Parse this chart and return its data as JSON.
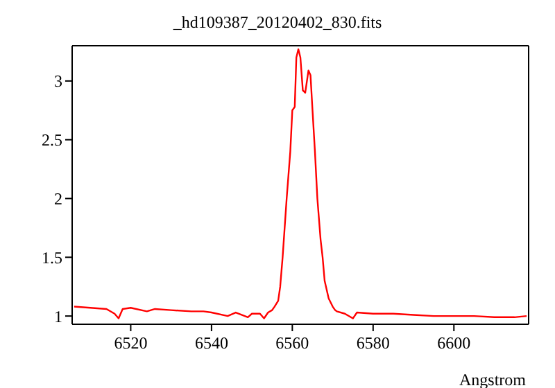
{
  "chart_data": {
    "type": "line",
    "title": "_hd109387_20120402_830.fits",
    "xlabel": "Angstrom",
    "xlim": [
      6505.5,
      6618.5
    ],
    "xticks": [
      6520,
      6540,
      6560,
      6580,
      6600
    ],
    "ylim": [
      0.93,
      3.3
    ],
    "yticks": [
      1,
      1.5,
      2,
      2.5,
      3
    ],
    "grid": false,
    "legend": false,
    "marker": "none",
    "line_style": "solid",
    "series": [
      {
        "color": "#ff0000",
        "x": [
          6506,
          6510,
          6514,
          6516,
          6517,
          6518,
          6520,
          6524,
          6526,
          6530,
          6535,
          6538,
          6540,
          6544,
          6546,
          6549,
          6550,
          6552,
          6553,
          6554,
          6555,
          6555.6,
          6556.5,
          6557,
          6557.6,
          6558.6,
          6559.5,
          6560,
          6560.6,
          6561,
          6561.5,
          6562,
          6562.6,
          6563.2,
          6564,
          6564.5,
          6565,
          6565.6,
          6566.2,
          6567,
          6567.5,
          6568,
          6569,
          6570,
          6570.6,
          6571,
          6573,
          6575,
          6576,
          6580,
          6585,
          6590,
          6595,
          6600,
          6605,
          6610,
          6615,
          6618
        ],
        "values": [
          1.08,
          1.07,
          1.06,
          1.02,
          0.98,
          1.06,
          1.07,
          1.04,
          1.06,
          1.05,
          1.04,
          1.04,
          1.03,
          1.0,
          1.03,
          0.99,
          1.02,
          1.02,
          0.98,
          1.03,
          1.05,
          1.08,
          1.13,
          1.25,
          1.5,
          2.0,
          2.4,
          2.75,
          2.78,
          3.2,
          3.27,
          3.2,
          2.92,
          2.9,
          3.09,
          3.05,
          2.75,
          2.4,
          2.0,
          1.65,
          1.5,
          1.3,
          1.15,
          1.08,
          1.05,
          1.04,
          1.02,
          0.98,
          1.03,
          1.02,
          1.02,
          1.01,
          1.0,
          1.0,
          1.0,
          0.99,
          0.99,
          1.0
        ]
      }
    ]
  }
}
